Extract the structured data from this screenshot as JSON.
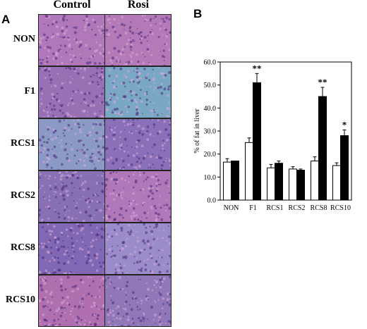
{
  "panel_a": {
    "letter": "A",
    "columns": [
      "Control",
      "Rosi"
    ],
    "rows": [
      {
        "label": "NON",
        "control_color": "#b078b8",
        "rosi_color": "#b47ab8"
      },
      {
        "label": "F1",
        "control_color": "#9870b4",
        "rosi_color": "#7aa8c4"
      },
      {
        "label": "RCS1",
        "control_color": "#8a9ac4",
        "rosi_color": "#8a70b8"
      },
      {
        "label": "RCS2",
        "control_color": "#8870b4",
        "rosi_color": "#b078b8"
      },
      {
        "label": "RCS8",
        "control_color": "#8068b4",
        "rosi_color": "#9a8cc8"
      },
      {
        "label": "RCS10",
        "control_color": "#b070b0",
        "rosi_color": "#9078b8"
      }
    ]
  },
  "panel_b": {
    "letter": "B"
  },
  "chart_data": {
    "type": "bar",
    "ylabel": "% of fat in liver",
    "ylim": [
      0,
      60
    ],
    "yticks": [
      "0.0",
      "10.0",
      "20.0",
      "30.0",
      "40.0",
      "50.0",
      "60.0"
    ],
    "categories": [
      "NON",
      "F1",
      "RCS1",
      "RCS2",
      "RCS8",
      "RCS10"
    ],
    "series": [
      {
        "values": [
          16.5,
          25.0,
          14.0,
          13.5,
          17.0,
          15.0
        ],
        "errors": [
          1.5,
          2.0,
          1.5,
          1.0,
          1.8,
          1.2
        ],
        "fill": "#ffffff"
      },
      {
        "values": [
          17.0,
          51.0,
          16.0,
          13.0,
          45.0,
          28.0
        ],
        "errors": [
          0.0,
          4.0,
          1.0,
          0.5,
          4.0,
          2.5
        ],
        "fill": "#000000"
      }
    ],
    "annotations": [
      "",
      "**",
      "",
      "",
      "**",
      "*"
    ],
    "grid": false
  }
}
